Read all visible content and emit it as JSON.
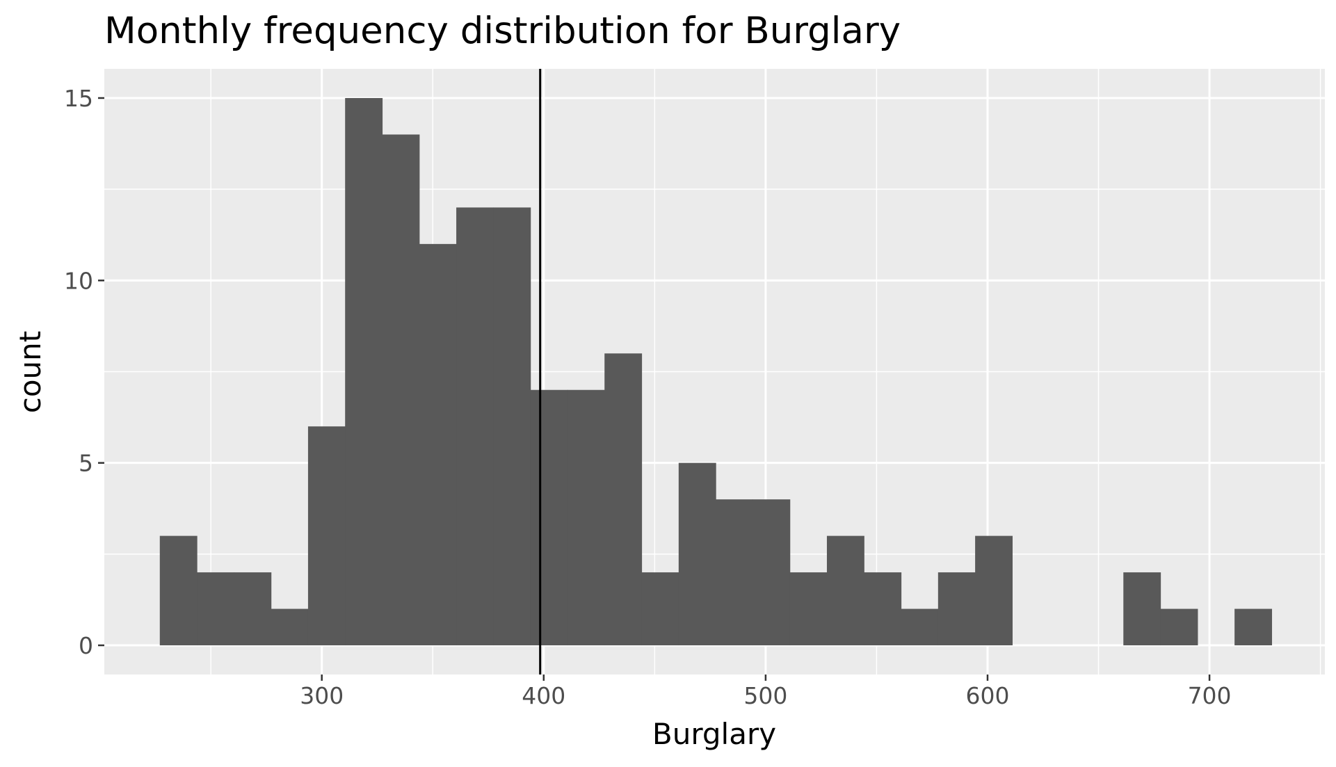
{
  "chart_data": {
    "type": "bar",
    "subtype": "histogram",
    "title": "Monthly frequency distribution for Burglary",
    "xlabel": "Burglary",
    "ylabel": "count",
    "xlim": [
      202,
      752
    ],
    "ylim": [
      -0.8,
      15.8
    ],
    "xticks": [
      300,
      400,
      500,
      600,
      700
    ],
    "yticks": [
      0,
      5,
      10,
      15
    ],
    "xtick_labels": [
      "300",
      "400",
      "500",
      "600",
      "700"
    ],
    "ytick_labels": [
      "0",
      "5",
      "10",
      "15"
    ],
    "x_minor_grid": [
      250,
      350,
      450,
      550,
      650,
      750
    ],
    "y_minor_grid": [
      2.5,
      7.5,
      12.5
    ],
    "bin_width": 16.7,
    "bins": [
      {
        "x0": 227.0,
        "x1": 243.7,
        "count": 3
      },
      {
        "x0": 243.7,
        "x1": 260.4,
        "count": 2
      },
      {
        "x0": 260.4,
        "x1": 277.1,
        "count": 2
      },
      {
        "x0": 277.1,
        "x1": 293.8,
        "count": 1
      },
      {
        "x0": 293.8,
        "x1": 310.5,
        "count": 6
      },
      {
        "x0": 310.5,
        "x1": 327.2,
        "count": 15
      },
      {
        "x0": 327.2,
        "x1": 343.9,
        "count": 14
      },
      {
        "x0": 343.9,
        "x1": 360.6,
        "count": 11
      },
      {
        "x0": 360.6,
        "x1": 377.3,
        "count": 12
      },
      {
        "x0": 377.3,
        "x1": 394.0,
        "count": 12
      },
      {
        "x0": 394.0,
        "x1": 410.7,
        "count": 7
      },
      {
        "x0": 410.7,
        "x1": 427.4,
        "count": 7
      },
      {
        "x0": 427.4,
        "x1": 444.1,
        "count": 8
      },
      {
        "x0": 444.1,
        "x1": 460.8,
        "count": 2
      },
      {
        "x0": 460.8,
        "x1": 477.5,
        "count": 5
      },
      {
        "x0": 477.5,
        "x1": 494.2,
        "count": 4
      },
      {
        "x0": 494.2,
        "x1": 510.9,
        "count": 4
      },
      {
        "x0": 510.9,
        "x1": 527.6,
        "count": 2
      },
      {
        "x0": 527.6,
        "x1": 544.3,
        "count": 3
      },
      {
        "x0": 544.3,
        "x1": 561.0,
        "count": 2
      },
      {
        "x0": 561.0,
        "x1": 577.7,
        "count": 1
      },
      {
        "x0": 577.7,
        "x1": 594.4,
        "count": 2
      },
      {
        "x0": 594.4,
        "x1": 611.1,
        "count": 3
      },
      {
        "x0": 661.2,
        "x1": 677.9,
        "count": 2
      },
      {
        "x0": 677.9,
        "x1": 694.6,
        "count": 1
      },
      {
        "x0": 711.3,
        "x1": 728.0,
        "count": 1
      }
    ],
    "vline": {
      "x": 398.4,
      "color": "#000000"
    },
    "grid": true,
    "legend": "none",
    "colors": {
      "bar": "#595959",
      "panel": "#ebebeb",
      "gridline": "#ffffff",
      "tick_text": "#4d4d4d",
      "text": "#000000"
    }
  }
}
